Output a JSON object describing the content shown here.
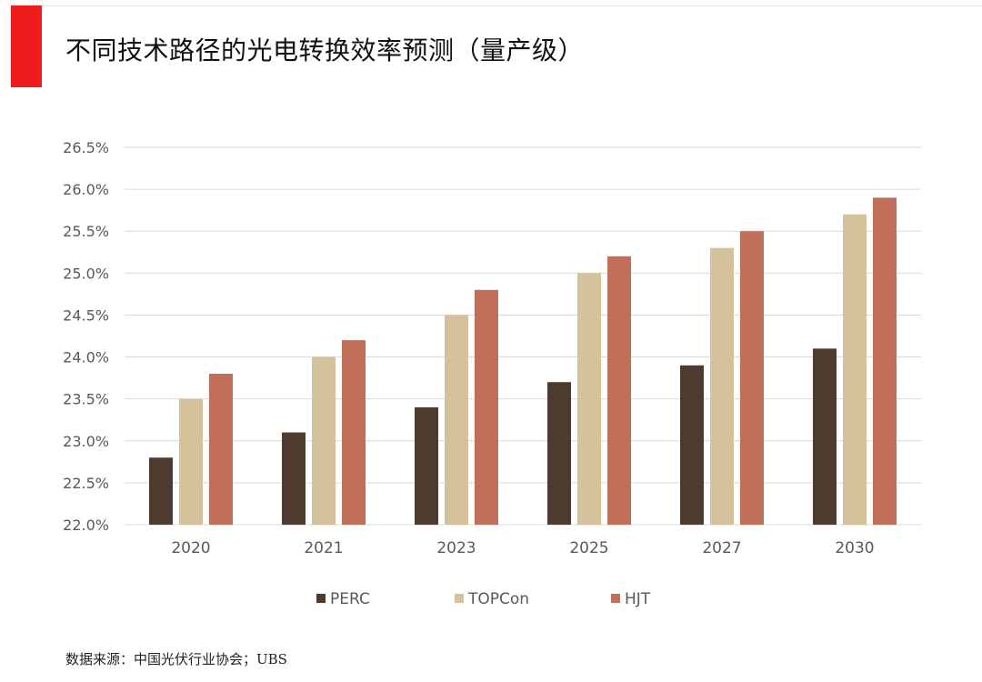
{
  "title": "不同技术路径的光电转换效率预测（量产级）",
  "source": "数据来源：中国光伏行业协会；UBS",
  "colors": {
    "accent": "#ee1c1c",
    "grid": "#d9d9d9",
    "tick_text": "#595959"
  },
  "chart_data": {
    "type": "bar",
    "title": "",
    "xlabel": "",
    "ylabel": "",
    "categories": [
      "2020",
      "2021",
      "2023",
      "2025",
      "2027",
      "2030"
    ],
    "series": [
      {
        "name": "PERC",
        "color": "#4e3b30",
        "values": [
          22.8,
          23.1,
          23.4,
          23.7,
          23.9,
          24.1
        ]
      },
      {
        "name": "TOPCon",
        "color": "#d3c29c",
        "values": [
          23.5,
          24.0,
          24.5,
          25.0,
          25.3,
          25.7
        ]
      },
      {
        "name": "HJT",
        "color": "#c0705a",
        "values": [
          23.8,
          24.2,
          24.8,
          25.2,
          25.5,
          25.9
        ]
      }
    ],
    "ylim": [
      22.0,
      26.5
    ],
    "yticks": [
      22.0,
      22.5,
      23.0,
      23.5,
      24.0,
      24.5,
      25.0,
      25.5,
      26.0,
      26.5
    ],
    "ytick_labels": [
      "22.0%",
      "22.5%",
      "23.0%",
      "23.5%",
      "24.0%",
      "24.5%",
      "25.0%",
      "25.5%",
      "26.0%",
      "26.5%"
    ],
    "grid": true,
    "legend_position": "bottom"
  }
}
